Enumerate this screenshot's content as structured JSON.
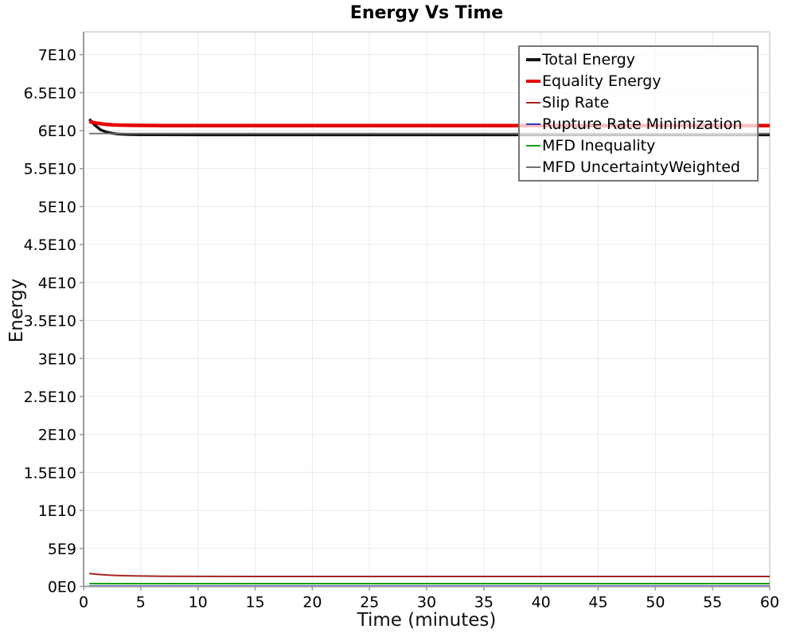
{
  "title": "Energy Vs Time",
  "axes": {
    "x_label": "Time (minutes)",
    "y_label": "Energy"
  },
  "colors": {
    "total_energy": "#141414",
    "equality_energy": "#e60000",
    "slip_rate": "#a62424",
    "rupture_rate_minimization": "#3232c8",
    "mfd_inequality": "#12a012",
    "mfd_uncertainty_weighted": "#707070",
    "axis": "#9b9b9b",
    "grid": "#e9e9e9",
    "border_light": "#cfcfcf",
    "legend_border": "#777777"
  },
  "legend": {
    "entries": [
      {
        "label": "Total Energy",
        "color": "#141414",
        "thickness": 4
      },
      {
        "label": "Equality Energy",
        "color": "#e60000",
        "thickness": 4
      },
      {
        "label": "Slip Rate",
        "color": "#a62424",
        "thickness": 2
      },
      {
        "label": "Rupture Rate Minimization",
        "color": "#3232c8",
        "thickness": 2
      },
      {
        "label": "MFD Inequality",
        "color": "#12a012",
        "thickness": 2
      },
      {
        "label": "MFD UncertaintyWeighted",
        "color": "#707070",
        "thickness": 2
      }
    ]
  },
  "chart_data": {
    "type": "line",
    "title": "Energy Vs Time",
    "xlabel": "Time (minutes)",
    "ylabel": "Energy",
    "xlim": [
      0,
      60
    ],
    "ylim": [
      0,
      73000000000.0
    ],
    "grid": true,
    "legend_position": "top-right",
    "x_ticks": [
      0,
      5,
      10,
      15,
      20,
      25,
      30,
      35,
      40,
      45,
      50,
      55,
      60
    ],
    "y_ticks": [
      {
        "value": 0,
        "label": "0E0"
      },
      {
        "value": 5000000000.0,
        "label": "5E9"
      },
      {
        "value": 10000000000.0,
        "label": "1E10"
      },
      {
        "value": 15000000000.0,
        "label": "1.5E10"
      },
      {
        "value": 20000000000.0,
        "label": "2E10"
      },
      {
        "value": 25000000000.0,
        "label": "2.5E10"
      },
      {
        "value": 30000000000.0,
        "label": "3E10"
      },
      {
        "value": 35000000000.0,
        "label": "3.5E10"
      },
      {
        "value": 40000000000.0,
        "label": "4E10"
      },
      {
        "value": 45000000000.0,
        "label": "4.5E10"
      },
      {
        "value": 50000000000.0,
        "label": "5E10"
      },
      {
        "value": 55000000000.0,
        "label": "5.5E10"
      },
      {
        "value": 60000000000.0,
        "label": "6E10"
      },
      {
        "value": 65000000000.0,
        "label": "6.5E10"
      },
      {
        "value": 70000000000.0,
        "label": "7E10"
      }
    ],
    "x": [
      0.5,
      1,
      1.5,
      2,
      2.5,
      3,
      4,
      5,
      7,
      10,
      15,
      20,
      25,
      30,
      35,
      40,
      45,
      50,
      55,
      60
    ],
    "series": [
      {
        "name": "Rupture Rate Minimization",
        "color": "#3232c8",
        "width": 2,
        "z": 0,
        "values": [
          50000000.0,
          50000000.0,
          50000000.0,
          50000000.0,
          50000000.0,
          50000000.0,
          50000000.0,
          50000000.0,
          50000000.0,
          50000000.0,
          50000000.0,
          50000000.0,
          50000000.0,
          50000000.0,
          50000000.0,
          50000000.0,
          50000000.0,
          50000000.0,
          50000000.0,
          50000000.0
        ]
      },
      {
        "name": "MFD Inequality",
        "color": "#12a012",
        "width": 2,
        "z": 1,
        "values": [
          370000000.0,
          370000000.0,
          370000000.0,
          370000000.0,
          370000000.0,
          370000000.0,
          370000000.0,
          370000000.0,
          370000000.0,
          370000000.0,
          370000000.0,
          370000000.0,
          370000000.0,
          370000000.0,
          370000000.0,
          370000000.0,
          370000000.0,
          370000000.0,
          370000000.0,
          370000000.0
        ]
      },
      {
        "name": "Slip Rate",
        "color": "#a62424",
        "width": 2,
        "z": 2,
        "values": [
          1700000000.0,
          1620000000.0,
          1560000000.0,
          1510000000.0,
          1470000000.0,
          1440000000.0,
          1400000000.0,
          1370000000.0,
          1340000000.0,
          1320000000.0,
          1310000000.0,
          1310000000.0,
          1310000000.0,
          1310000000.0,
          1310000000.0,
          1310000000.0,
          1310000000.0,
          1310000000.0,
          1310000000.0,
          1310000000.0
        ]
      },
      {
        "name": "Total Energy",
        "color": "#141414",
        "width": 3.5,
        "z": 3,
        "values": [
          61500000000.0,
          60700000000.0,
          60100000000.0,
          59800000000.0,
          59650000000.0,
          59560000000.0,
          59480000000.0,
          59460000000.0,
          59450000000.0,
          59440000000.0,
          59440000000.0,
          59440000000.0,
          59440000000.0,
          59440000000.0,
          59440000000.0,
          59440000000.0,
          59440000000.0,
          59440000000.0,
          59440000000.0,
          59440000000.0
        ]
      },
      {
        "name": "MFD UncertaintyWeighted",
        "color": "#707070",
        "width": 1.8,
        "z": 4,
        "values": [
          59620000000.0,
          59620000000.0,
          59620000000.0,
          59620000000.0,
          59620000000.0,
          59620000000.0,
          59620000000.0,
          59620000000.0,
          59620000000.0,
          59620000000.0,
          59620000000.0,
          59620000000.0,
          59620000000.0,
          59620000000.0,
          59620000000.0,
          59620000000.0,
          59620000000.0,
          59620000000.0,
          59620000000.0,
          59620000000.0
        ]
      },
      {
        "name": "Equality Energy",
        "color": "#e60000",
        "width": 4.5,
        "z": 5,
        "values": [
          61200000000.0,
          61020000000.0,
          60900000000.0,
          60820000000.0,
          60770000000.0,
          60740000000.0,
          60700000000.0,
          60680000000.0,
          60660000000.0,
          60650000000.0,
          60650000000.0,
          60650000000.0,
          60650000000.0,
          60650000000.0,
          60650000000.0,
          60650000000.0,
          60650000000.0,
          60650000000.0,
          60650000000.0,
          60650000000.0
        ]
      }
    ]
  }
}
